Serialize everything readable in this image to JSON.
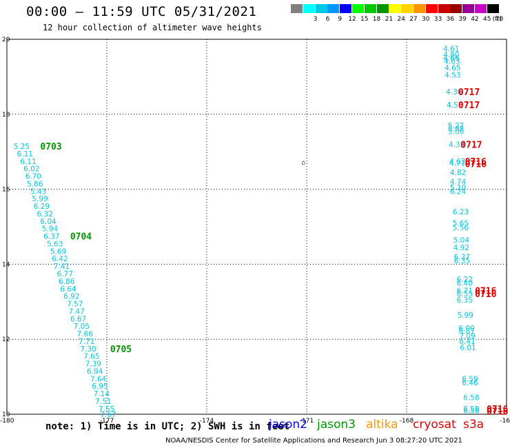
{
  "header": {
    "title": "00:00 – 11:59 UTC 05/31/2021",
    "subtitle": "12 hour collection of altimeter wave heights"
  },
  "legend": {
    "unit": "(ft)",
    "swatches": [
      {
        "label": "",
        "color": "#808080"
      },
      {
        "label": "3",
        "color": "#00ffff"
      },
      {
        "label": "6",
        "color": "#00c8e6"
      },
      {
        "label": "9",
        "color": "#0096ff"
      },
      {
        "label": "12",
        "color": "#0000ff"
      },
      {
        "label": "15",
        "color": "#00ff00"
      },
      {
        "label": "18",
        "color": "#00c800"
      },
      {
        "label": "21",
        "color": "#009600"
      },
      {
        "label": "24",
        "color": "#ffff00"
      },
      {
        "label": "27",
        "color": "#ffd200"
      },
      {
        "label": "30",
        "color": "#ff9600"
      },
      {
        "label": "33",
        "color": "#ff0000"
      },
      {
        "label": "36",
        "color": "#c80000"
      },
      {
        "label": "39",
        "color": "#960000"
      },
      {
        "label": "42",
        "color": "#960096"
      },
      {
        "label": "45",
        "color": "#c800c8"
      },
      {
        "label": "70",
        "color": "#000000"
      }
    ]
  },
  "footer": {
    "note": "note: 1) Time is in UTC; 2) SWH is in feet",
    "satellites": [
      {
        "name": "jason2",
        "color": "#0000ff"
      },
      {
        "name": "jason3",
        "color": "#009600"
      },
      {
        "name": "altika",
        "color": "#ff9600"
      },
      {
        "name": "cryosat",
        "color": "#e00000"
      },
      {
        "name": "s3a",
        "color": "#e00000"
      }
    ],
    "credit": "NOAA/NESDIS Center for Satellite Applications and Research    Jun  3 08:27:20 UTC 2021"
  },
  "chart_data": {
    "type": "scatter",
    "title": "00:00 – 11:59 UTC 05/31/2021",
    "subtitle": "12 hour collection of altimeter wave heights",
    "xlim": [
      -180,
      -165
    ],
    "ylim": [
      10,
      20
    ],
    "x_ticks": [
      "-180",
      "-177",
      "-174",
      "-171",
      "-168",
      "-16"
    ],
    "y_ticks": [
      "20",
      "18",
      "16",
      "14",
      "12",
      "10"
    ],
    "grid": true,
    "marker_text": "⌂",
    "marker": {
      "lon": -171.15,
      "lat": 16.72
    },
    "series": [
      {
        "name": "jason3",
        "points": [
          {
            "lon": -179.8,
            "lat": 17.15,
            "v": "5.25"
          },
          {
            "lon": -179.7,
            "lat": 16.95,
            "v": "6.11"
          },
          {
            "lon": -179.6,
            "lat": 16.75,
            "v": "6.11"
          },
          {
            "lon": -179.5,
            "lat": 16.55,
            "v": "6.02"
          },
          {
            "lon": -179.45,
            "lat": 16.35,
            "v": "6.70"
          },
          {
            "lon": -179.4,
            "lat": 16.15,
            "v": "5.86"
          },
          {
            "lon": -179.3,
            "lat": 15.95,
            "v": "5.43"
          },
          {
            "lon": -179.25,
            "lat": 15.75,
            "v": "5.99"
          },
          {
            "lon": -179.2,
            "lat": 15.55,
            "v": "6.29"
          },
          {
            "lon": -179.1,
            "lat": 15.35,
            "v": "6.32"
          },
          {
            "lon": -179.0,
            "lat": 15.15,
            "v": "6.04"
          },
          {
            "lon": -178.95,
            "lat": 14.95,
            "v": "5.94"
          },
          {
            "lon": -178.9,
            "lat": 14.75,
            "v": "6.37"
          },
          {
            "lon": -178.8,
            "lat": 14.55,
            "v": "5.63"
          },
          {
            "lon": -178.7,
            "lat": 14.35,
            "v": "5.69"
          },
          {
            "lon": -178.65,
            "lat": 14.15,
            "v": "6.42"
          },
          {
            "lon": -178.6,
            "lat": 13.95,
            "v": "7.41"
          },
          {
            "lon": -178.5,
            "lat": 13.75,
            "v": "6.77"
          },
          {
            "lon": -178.45,
            "lat": 13.55,
            "v": "6.86"
          },
          {
            "lon": -178.4,
            "lat": 13.35,
            "v": "6.64"
          },
          {
            "lon": -178.3,
            "lat": 13.15,
            "v": "6.92"
          },
          {
            "lon": -178.2,
            "lat": 12.95,
            "v": "7.57"
          },
          {
            "lon": -178.15,
            "lat": 12.75,
            "v": "7.47"
          },
          {
            "lon": -178.1,
            "lat": 12.55,
            "v": "6.67"
          },
          {
            "lon": -178.0,
            "lat": 12.35,
            "v": "7.05"
          },
          {
            "lon": -177.9,
            "lat": 12.15,
            "v": "7.66"
          },
          {
            "lon": -177.85,
            "lat": 11.95,
            "v": "7.71"
          },
          {
            "lon": -177.8,
            "lat": 11.75,
            "v": "7.30"
          },
          {
            "lon": -177.7,
            "lat": 11.55,
            "v": "7.65"
          },
          {
            "lon": -177.65,
            "lat": 11.35,
            "v": "7.39"
          },
          {
            "lon": -177.6,
            "lat": 11.15,
            "v": "6.94"
          },
          {
            "lon": -177.5,
            "lat": 10.95,
            "v": "7.64"
          },
          {
            "lon": -177.45,
            "lat": 10.75,
            "v": "6.95"
          },
          {
            "lon": -177.4,
            "lat": 10.55,
            "v": "7.14"
          },
          {
            "lon": -177.35,
            "lat": 10.35,
            "v": "7.51"
          },
          {
            "lon": -177.25,
            "lat": 10.15,
            "v": "7.55"
          },
          {
            "lon": -177.2,
            "lat": 10.0,
            "v": "7.67"
          }
        ],
        "time_labels": [
          {
            "lon": -179.0,
            "lat": 17.15,
            "t": "0703"
          },
          {
            "lon": -178.1,
            "lat": 14.75,
            "t": "0704"
          },
          {
            "lon": -176.9,
            "lat": 11.75,
            "t": "0705"
          }
        ]
      },
      {
        "name": "cryosat",
        "points": [
          {
            "lon": -166.9,
            "lat": 19.75,
            "v": "4.61"
          },
          {
            "lon": -166.9,
            "lat": 19.6,
            "v": "4.80"
          },
          {
            "lon": -166.9,
            "lat": 19.5,
            "v": "4.66"
          },
          {
            "lon": -166.88,
            "lat": 19.42,
            "v": "4.63"
          },
          {
            "lon": -166.86,
            "lat": 19.25,
            "v": "4.65"
          },
          {
            "lon": -166.86,
            "lat": 19.05,
            "v": "4.53"
          },
          {
            "lon": -166.82,
            "lat": 18.6,
            "v": "4.36"
          },
          {
            "lon": -166.8,
            "lat": 18.25,
            "v": "4.58"
          },
          {
            "lon": -166.76,
            "lat": 17.7,
            "v": "5.27"
          },
          {
            "lon": -166.76,
            "lat": 17.62,
            "v": "5.08"
          },
          {
            "lon": -166.76,
            "lat": 17.55,
            "v": "5.06"
          },
          {
            "lon": -166.74,
            "lat": 17.2,
            "v": "4.33"
          },
          {
            "lon": -166.72,
            "lat": 16.75,
            "v": "4.63"
          },
          {
            "lon": -166.72,
            "lat": 16.7,
            "v": "4.71"
          },
          {
            "lon": -166.7,
            "lat": 16.45,
            "v": "4.82"
          },
          {
            "lon": -166.7,
            "lat": 16.2,
            "v": "4.74"
          },
          {
            "lon": -166.7,
            "lat": 16.05,
            "v": "5.10"
          },
          {
            "lon": -166.7,
            "lat": 15.95,
            "v": "6.24"
          },
          {
            "lon": -166.62,
            "lat": 15.4,
            "v": "6.23"
          },
          {
            "lon": -166.62,
            "lat": 15.1,
            "v": "5.65"
          },
          {
            "lon": -166.62,
            "lat": 14.98,
            "v": "5.56"
          },
          {
            "lon": -166.6,
            "lat": 14.65,
            "v": "5.04"
          },
          {
            "lon": -166.6,
            "lat": 14.45,
            "v": "4.92"
          },
          {
            "lon": -166.58,
            "lat": 14.2,
            "v": "6.37"
          },
          {
            "lon": -166.58,
            "lat": 14.1,
            "v": "6.35"
          },
          {
            "lon": -166.5,
            "lat": 13.6,
            "v": "6.22"
          },
          {
            "lon": -166.5,
            "lat": 13.5,
            "v": "6.40"
          },
          {
            "lon": -166.5,
            "lat": 13.3,
            "v": "6.71"
          },
          {
            "lon": -166.5,
            "lat": 13.22,
            "v": "6.55"
          },
          {
            "lon": -166.5,
            "lat": 13.05,
            "v": "6.35"
          },
          {
            "lon": -166.48,
            "lat": 12.65,
            "v": "5.99"
          },
          {
            "lon": -166.44,
            "lat": 12.3,
            "v": "6.00"
          },
          {
            "lon": -166.44,
            "lat": 12.22,
            "v": "6.87"
          },
          {
            "lon": -166.42,
            "lat": 12.1,
            "v": "7.09"
          },
          {
            "lon": -166.42,
            "lat": 11.95,
            "v": "6.41"
          },
          {
            "lon": -166.4,
            "lat": 11.78,
            "v": "6.01"
          },
          {
            "lon": -166.34,
            "lat": 10.95,
            "v": "6.59"
          },
          {
            "lon": -166.34,
            "lat": 10.85,
            "v": "6.46"
          },
          {
            "lon": -166.3,
            "lat": 10.45,
            "v": "6.58"
          },
          {
            "lon": -166.3,
            "lat": 10.15,
            "v": "6.58"
          },
          {
            "lon": -166.3,
            "lat": 10.1,
            "v": "6.58"
          }
        ],
        "time_labels": [
          {
            "lon": -166.45,
            "lat": 18.6,
            "t": "0717"
          },
          {
            "lon": -166.45,
            "lat": 18.25,
            "t": "0717"
          },
          {
            "lon": -166.38,
            "lat": 17.2,
            "t": "0717"
          },
          {
            "lon": -166.25,
            "lat": 16.75,
            "t": "0716"
          },
          {
            "lon": -166.25,
            "lat": 16.68,
            "t": "0716"
          },
          {
            "lon": -165.95,
            "lat": 13.3,
            "t": "0716"
          },
          {
            "lon": -165.95,
            "lat": 13.22,
            "t": "0716"
          },
          {
            "lon": -165.6,
            "lat": 10.15,
            "t": "0716"
          },
          {
            "lon": -165.6,
            "lat": 10.08,
            "t": "0716"
          }
        ]
      }
    ]
  }
}
